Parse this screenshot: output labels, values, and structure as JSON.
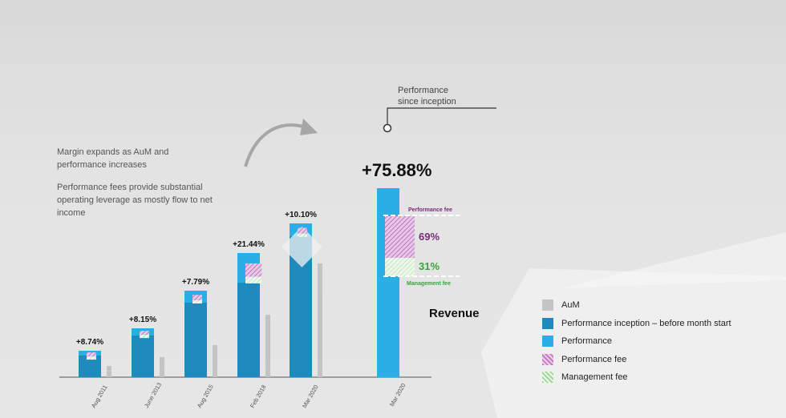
{
  "notes": {
    "margin": "Margin expands as AuM and performance increases",
    "leverage": "Performance fees provide substantial operating leverage as mostly flow to net income"
  },
  "performance_since_inception_label": "Performance since inception",
  "total_performance": "+75.88%",
  "revenue_label": "Revenue",
  "split": {
    "performance_fee_label": "Performance fee",
    "performance_fee_pct": "69%",
    "management_fee_label": "Management fee",
    "management_fee_pct": "31%"
  },
  "legend": [
    {
      "label": "AuM",
      "color": "#c4c4c4",
      "pattern": "none"
    },
    {
      "label": "Performance inception – before month start",
      "color": "#1f8bbd",
      "pattern": "none"
    },
    {
      "label": "Performance",
      "color": "#2aaee6",
      "pattern": "none"
    },
    {
      "label": "Performance fee",
      "color": "#c879c5",
      "pattern": "hatch"
    },
    {
      "label": "Management fee",
      "color": "#8fd18a",
      "pattern": "hatch"
    }
  ],
  "colors": {
    "aum": "#c4c4c4",
    "inception": "#1f8bbd",
    "performance": "#2aaee6",
    "perf_fee": "#b45ab4",
    "mgmt_fee": "#5cb85c",
    "perf_fee_text": "#7a2a7a",
    "mgmt_fee_text": "#3aa33a"
  },
  "chart_data": {
    "type": "bar",
    "categories": [
      "Aug 2011",
      "June 2013",
      "Aug 2015",
      "Feb 2018",
      "Mar 2020"
    ],
    "performance_labels": [
      "+8.74%",
      "+8.15%",
      "+7.79%",
      "+21.44%",
      "+10.10%"
    ],
    "series": [
      {
        "name": "Performance inception – before month start",
        "values": [
          27,
          52,
          93,
          118,
          176
        ]
      },
      {
        "name": "Performance",
        "values": [
          6,
          9,
          15,
          37,
          16
        ]
      },
      {
        "name": "AuM",
        "values": [
          14,
          25,
          40,
          78,
          142
        ]
      }
    ],
    "final": {
      "category": "Mar 2020",
      "value": "+75.88%",
      "performance_fee_share": 69,
      "management_fee_share": 31
    },
    "ylim": [
      0,
      240
    ]
  }
}
